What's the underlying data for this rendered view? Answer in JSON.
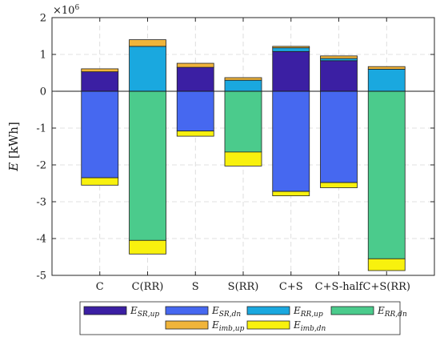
{
  "chart_data": {
    "type": "bar",
    "stacked": true,
    "categories": [
      "C",
      "C(RR)",
      "S",
      "S(RR)",
      "C+S",
      "C+S-half",
      "C+S(RR)"
    ],
    "ylabel": "E [kWh]",
    "ylabel_symbol": "E",
    "ylabel_unit": "[kWh]",
    "y_exponent": "×10",
    "y_exponent_power": "6",
    "ylim": [
      -5,
      2
    ],
    "yticks": [
      "-5",
      "-4",
      "-3",
      "-2",
      "-1",
      "0",
      "1",
      "2"
    ],
    "grid": true,
    "legend_position": "bottom",
    "positive_series": [
      {
        "key": "sr_up",
        "name": "E_SR,up",
        "color": "#3b1fa3",
        "values": [
          0.53,
          0,
          0.65,
          0,
          1.08,
          0.83,
          0
        ]
      },
      {
        "key": "rr_up",
        "name": "E_RR,up",
        "color": "#1aa8df",
        "values": [
          0,
          1.22,
          0,
          0.3,
          0.1,
          0.06,
          0.6
        ]
      },
      {
        "key": "imb_up",
        "name": "E_imb,up",
        "color": "#f0b43a",
        "values": [
          0.08,
          0.18,
          0.11,
          0.07,
          0.04,
          0.07,
          0.07
        ]
      }
    ],
    "negative_series": [
      {
        "key": "sr_dn",
        "name": "E_SR,dn",
        "color": "#4668f0",
        "values": [
          -2.35,
          0,
          -1.08,
          0,
          -2.72,
          -2.48,
          0
        ]
      },
      {
        "key": "rr_dn",
        "name": "E_RR,dn",
        "color": "#4bcb8c",
        "values": [
          0,
          -4.05,
          0,
          -1.65,
          0,
          0,
          -4.55
        ]
      },
      {
        "key": "imb_dn",
        "name": "E_imb,dn",
        "color": "#f8f10e",
        "values": [
          -0.2,
          -0.37,
          -0.14,
          -0.38,
          -0.12,
          -0.14,
          -0.32
        ]
      }
    ],
    "legend": {
      "row1": [
        {
          "key": "sr_up",
          "base": "E",
          "sub": "SR,up"
        },
        {
          "key": "sr_dn",
          "base": "E",
          "sub": "SR,dn"
        },
        {
          "key": "rr_up",
          "base": "E",
          "sub": "RR,up"
        },
        {
          "key": "rr_dn",
          "base": "E",
          "sub": "RR,dn"
        }
      ],
      "row2": [
        {
          "key": "imb_up",
          "base": "E",
          "sub": "imb,up"
        },
        {
          "key": "imb_dn",
          "base": "E",
          "sub": "imb,dn"
        }
      ]
    }
  }
}
